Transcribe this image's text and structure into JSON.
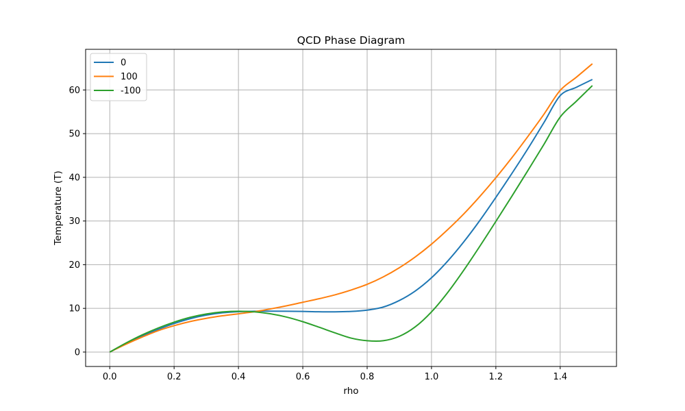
{
  "chart_data": {
    "type": "line",
    "title": "QCD Phase Diagram",
    "xlabel": "rho",
    "ylabel": "Temperature (T)",
    "xlim": [
      -0.075,
      1.575
    ],
    "ylim": [
      -3.3,
      69.3
    ],
    "xticks": [
      0.0,
      0.2,
      0.4,
      0.6,
      0.8,
      1.0,
      1.2,
      1.4
    ],
    "xtick_labels": [
      "0.0",
      "0.2",
      "0.4",
      "0.6",
      "0.8",
      "1.0",
      "1.2",
      "1.4"
    ],
    "yticks": [
      0,
      10,
      20,
      30,
      40,
      50,
      60
    ],
    "ytick_labels": [
      "0",
      "10",
      "20",
      "30",
      "40",
      "50",
      "60"
    ],
    "grid": true,
    "legend_position": "top-left",
    "x": [
      0.0,
      0.05,
      0.1,
      0.15,
      0.2,
      0.25,
      0.3,
      0.35,
      0.4,
      0.45,
      0.5,
      0.55,
      0.6,
      0.65,
      0.7,
      0.75,
      0.8,
      0.85,
      0.9,
      0.95,
      1.0,
      1.05,
      1.1,
      1.15,
      1.2,
      1.25,
      1.3,
      1.35,
      1.4,
      1.45,
      1.5
    ],
    "series": [
      {
        "name": "0",
        "color": "#1f77b4",
        "values": [
          0.0,
          1.92,
          3.64,
          5.18,
          6.53,
          7.64,
          8.45,
          8.98,
          9.25,
          9.34,
          9.36,
          9.35,
          9.3,
          9.22,
          9.2,
          9.3,
          9.6,
          10.3,
          11.8,
          14.0,
          17.0,
          20.8,
          25.2,
          30.1,
          35.4,
          40.9,
          46.6,
          52.6,
          58.7,
          60.6,
          62.4
        ]
      },
      {
        "name": "100",
        "color": "#ff7f0e",
        "values": [
          0.0,
          1.78,
          3.41,
          4.89,
          6.04,
          6.99,
          7.72,
          8.3,
          8.76,
          9.24,
          9.88,
          10.6,
          11.4,
          12.2,
          13.1,
          14.2,
          15.5,
          17.2,
          19.3,
          21.8,
          24.7,
          28.0,
          31.6,
          35.6,
          39.9,
          44.5,
          49.4,
          54.5,
          59.9,
          62.9,
          66.0
        ]
      },
      {
        "name": "-100",
        "color": "#2ca02c",
        "values": [
          0.0,
          2.05,
          3.9,
          5.5,
          6.85,
          7.95,
          8.72,
          9.18,
          9.35,
          9.2,
          8.75,
          8.0,
          6.95,
          5.7,
          4.4,
          3.2,
          2.6,
          2.6,
          3.6,
          5.8,
          9.2,
          13.6,
          18.7,
          24.2,
          29.9,
          35.7,
          41.6,
          47.6,
          53.8,
          57.4,
          61.0
        ]
      }
    ]
  }
}
